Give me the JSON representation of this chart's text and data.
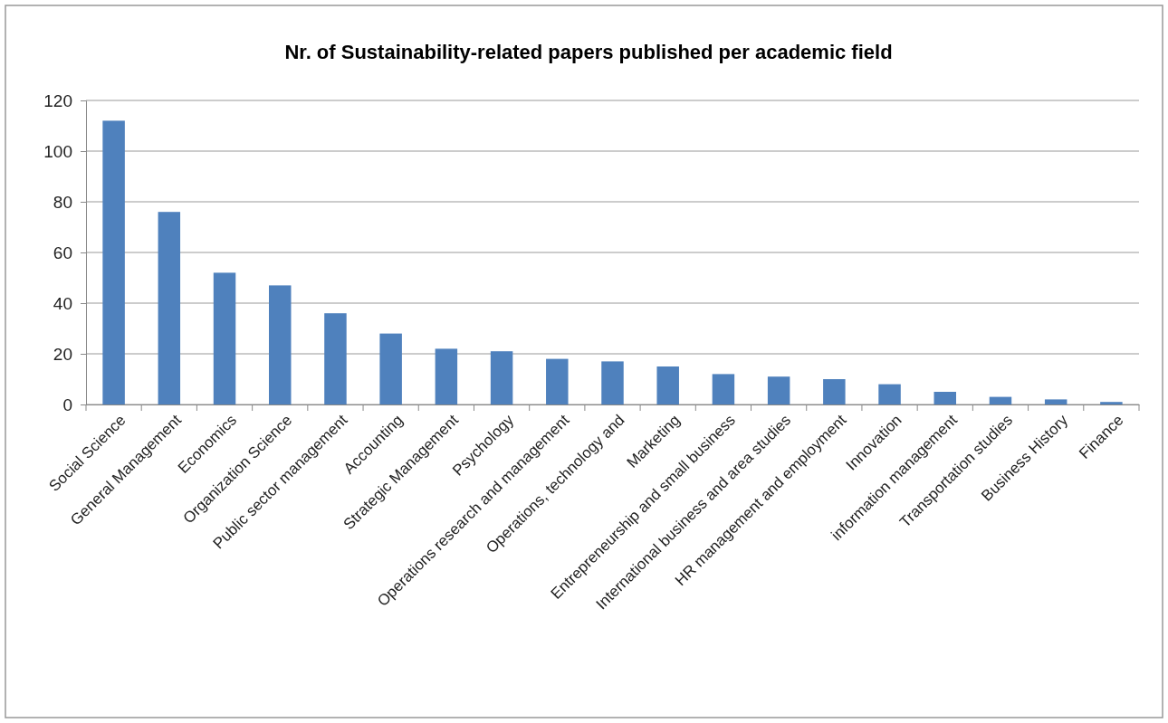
{
  "chart_data": {
    "type": "bar",
    "title": "Nr. of Sustainability-related papers published per academic field",
    "categories": [
      "Social Science",
      "General Management",
      "Economics",
      "Organization Science",
      "Public sector management",
      "Accounting",
      "Strategic Management",
      "Psychology",
      "Operations research and management",
      "Operations, technology and",
      "Marketing",
      "Entrepreneurship and small business",
      "International business and area studies",
      "HR management and employment",
      "Innovation",
      "information management",
      "Transportation studies",
      "Business History",
      "Finance"
    ],
    "values": [
      112,
      76,
      52,
      47,
      36,
      28,
      22,
      21,
      18,
      17,
      15,
      12,
      11,
      10,
      8,
      5,
      3,
      2,
      1
    ],
    "color": "#4f81bd",
    "ylim": [
      0,
      120
    ],
    "yticks": [
      0,
      20,
      40,
      60,
      80,
      100,
      120
    ],
    "grid": "y"
  }
}
